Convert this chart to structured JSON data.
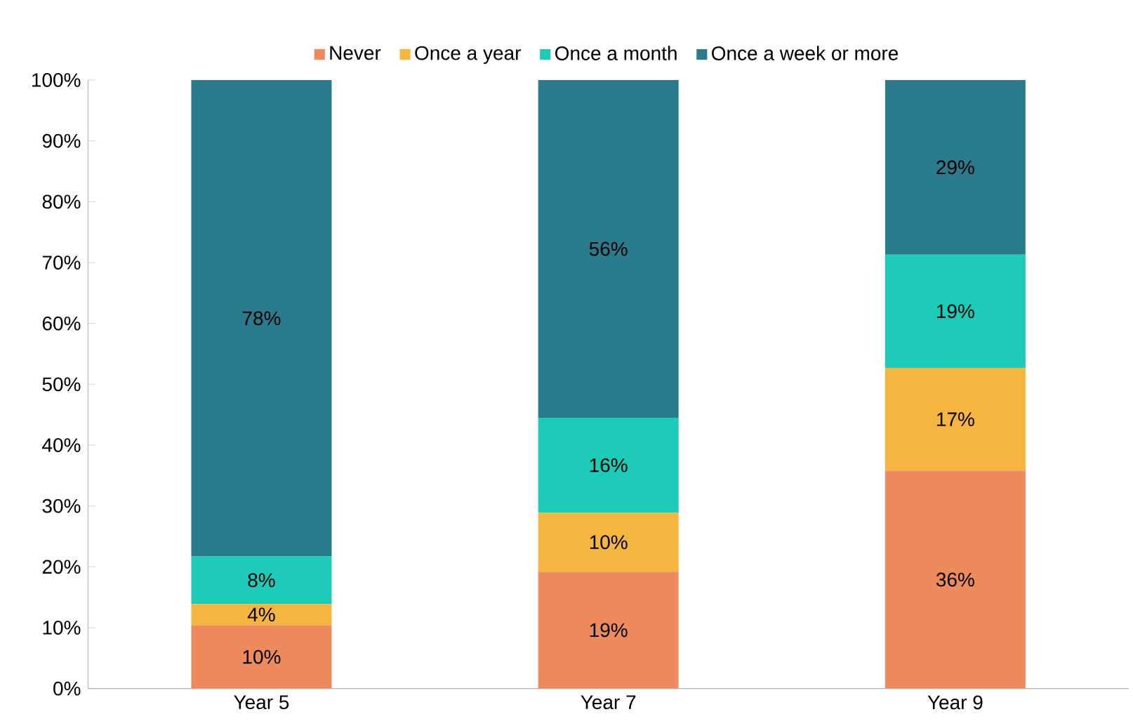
{
  "chart_data": {
    "type": "bar",
    "stacked": true,
    "legend": "top",
    "categories": [
      "Year 5",
      "Year 7",
      "Year 9"
    ],
    "series": [
      {
        "name": "Never",
        "color": "#ed8b5d",
        "values": [
          10.4,
          19.2,
          35.8
        ],
        "value_labels": [
          "10%",
          "19%",
          "36%"
        ]
      },
      {
        "name": "Once a year",
        "color": "#f5b63f",
        "values": [
          3.5,
          9.7,
          16.9
        ],
        "value_labels": [
          "4%",
          "10%",
          "17%"
        ]
      },
      {
        "name": "Once a month",
        "color": "#1ccbb8",
        "values": [
          7.8,
          15.6,
          18.6
        ],
        "value_labels": [
          "8%",
          "16%",
          "19%"
        ]
      },
      {
        "name": "Once a week or more",
        "color": "#2a7c8c",
        "values": [
          78.3,
          55.5,
          28.7
        ],
        "value_labels": [
          "78%",
          "56%",
          "29%"
        ]
      }
    ],
    "ylim": [
      0,
      100
    ],
    "yticks": [
      {
        "value": 0,
        "label": "0%"
      },
      {
        "value": 10,
        "label": "10%"
      },
      {
        "value": 20,
        "label": "20%"
      },
      {
        "value": 30,
        "label": "30%"
      },
      {
        "value": 40,
        "label": "40%"
      },
      {
        "value": 50,
        "label": "50%"
      },
      {
        "value": 60,
        "label": "60%"
      },
      {
        "value": 70,
        "label": "70%"
      },
      {
        "value": 80,
        "label": "80%"
      },
      {
        "value": 90,
        "label": "90%"
      },
      {
        "value": 100,
        "label": "100%"
      }
    ]
  }
}
